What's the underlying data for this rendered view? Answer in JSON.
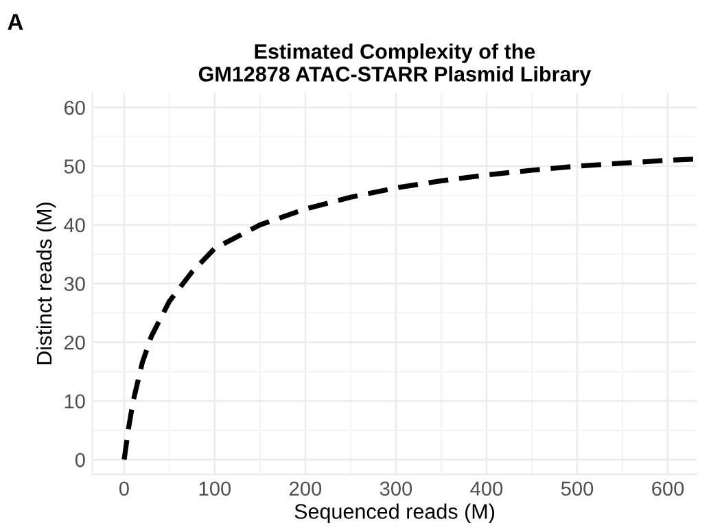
{
  "chart_data": {
    "type": "line",
    "title": "Estimated Complexity of the\nGM12878 ATAC-STARR Plasmid Library",
    "xlabel": "Sequenced reads (M)",
    "ylabel": "Distinct reads (M)",
    "annotations": [
      "A"
    ],
    "x": [
      0,
      5,
      10,
      20,
      30,
      50,
      75,
      100,
      150,
      200,
      250,
      300,
      350,
      400,
      450,
      500,
      550,
      600,
      630
    ],
    "series": [
      {
        "color": "#000000",
        "values": [
          0,
          5.5,
          10,
          16.5,
          21,
          27,
          32,
          36,
          40,
          42.7,
          44.7,
          46.3,
          47.5,
          48.5,
          49.3,
          50,
          50.5,
          51,
          51.2
        ]
      }
    ],
    "xlim": [
      -35,
      632
    ],
    "ylim": [
      -2.5,
      62.5
    ],
    "xticks": [
      0,
      100,
      200,
      300,
      400,
      500,
      600
    ],
    "yticks": [
      0,
      10,
      20,
      30,
      40,
      50,
      60
    ],
    "grid": true,
    "line_style": "dashed",
    "marker": "none",
    "legend": false
  }
}
